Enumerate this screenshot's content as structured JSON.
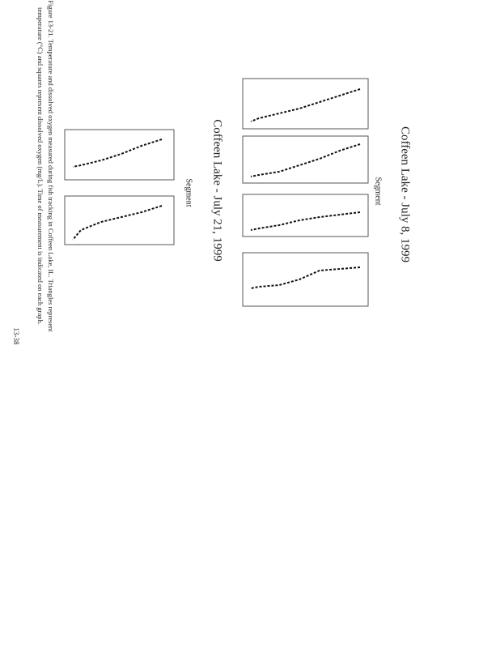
{
  "header": {
    "title_upper": "Coffeen Lake - July 8, 1999",
    "title_lower": "Coffeen Lake - July 21, 1999"
  },
  "labels": {
    "segment_upper": "Segment",
    "segment_lower": "Segment"
  },
  "caption": [
    "Figure 13-21. Temperature and dissolved oxygen measured during fish tracking in Coffeen Lake, IL. Triangles represent",
    "temperature (°C) and squares represent dissolved oxygen (mg/L). Time of measurement is indicated on each graph."
  ],
  "footer": {
    "page_number": "13-38"
  }
}
